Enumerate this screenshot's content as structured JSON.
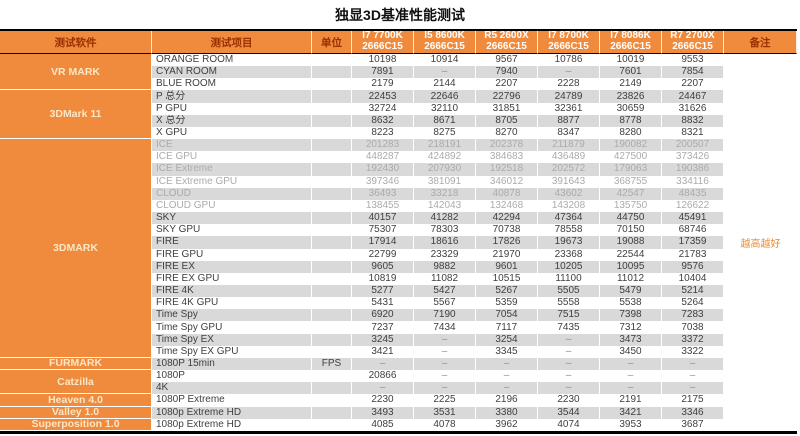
{
  "title": "独显3D基准性能测试",
  "colors": {
    "accent_orange": "#F08B3E",
    "stripe_gray": "#D9D9D9",
    "header_text": "#9C3000",
    "group_label_text": "#FBE7C5",
    "value_text": "#3F3F3F",
    "muted_row_text": "#ABABAB",
    "note_text": "#E78B33"
  },
  "table": {
    "headers": {
      "software": "测试软件",
      "item": "测试项目",
      "unit": "单位",
      "remark": "备注"
    },
    "cpu_columns": [
      {
        "model": "I7 7700K",
        "mem": "2666C15"
      },
      {
        "model": "I5 8600K",
        "mem": "2666C15"
      },
      {
        "model": "R5 2600X",
        "mem": "2666C15"
      },
      {
        "model": "I7 8700K",
        "mem": "2666C15"
      },
      {
        "model": "I7 8086K",
        "mem": "2666C15"
      },
      {
        "model": "R7 2700X",
        "mem": "2666C15"
      }
    ],
    "groups": [
      {
        "software": "VR MARK",
        "rows": [
          {
            "item": "ORANGE ROOM",
            "unit": "",
            "values": [
              "10198",
              "10914",
              "9567",
              "10786",
              "10019",
              "9553"
            ]
          },
          {
            "item": "CYAN ROOM",
            "unit": "",
            "values": [
              "7891",
              "–",
              "7940",
              "–",
              "7601",
              "7854"
            ]
          },
          {
            "item": "BLUE ROOM",
            "unit": "",
            "values": [
              "2179",
              "2144",
              "2207",
              "2228",
              "2149",
              "2207"
            ]
          }
        ]
      },
      {
        "software": "3DMark 11",
        "rows": [
          {
            "item": "P 总分",
            "unit": "",
            "values": [
              "22453",
              "22646",
              "22796",
              "24789",
              "23826",
              "24467"
            ]
          },
          {
            "item": "P GPU",
            "unit": "",
            "values": [
              "32724",
              "32110",
              "31851",
              "32361",
              "30659",
              "31626"
            ]
          },
          {
            "item": "X 总分",
            "unit": "",
            "values": [
              "8632",
              "8671",
              "8705",
              "8877",
              "8778",
              "8832"
            ]
          },
          {
            "item": "X GPU",
            "unit": "",
            "values": [
              "8223",
              "8275",
              "8270",
              "8347",
              "8280",
              "8321"
            ]
          }
        ]
      },
      {
        "software": "3DMARK",
        "rows": [
          {
            "item": "ICE",
            "unit": "",
            "muted": true,
            "values": [
              "201283",
              "218191",
              "202378",
              "211879",
              "190082",
              "200507"
            ]
          },
          {
            "item": "ICE GPU",
            "unit": "",
            "muted": true,
            "values": [
              "448287",
              "424892",
              "384683",
              "436489",
              "427500",
              "373426"
            ]
          },
          {
            "item": "ICE Extreme",
            "unit": "",
            "muted": true,
            "values": [
              "192430",
              "207930",
              "192518",
              "202572",
              "179063",
              "190386"
            ]
          },
          {
            "item": "ICE Extreme GPU",
            "unit": "",
            "muted": true,
            "values": [
              "397346",
              "381091",
              "346012",
              "391643",
              "368755",
              "334116"
            ]
          },
          {
            "item": "CLOUD",
            "unit": "",
            "muted": true,
            "values": [
              "36493",
              "33218",
              "40878",
              "43602",
              "42547",
              "48435"
            ]
          },
          {
            "item": "CLOUD GPU",
            "unit": "",
            "muted": true,
            "values": [
              "138455",
              "142043",
              "132468",
              "143208",
              "135750",
              "126622"
            ]
          },
          {
            "item": "SKY",
            "unit": "",
            "values": [
              "40157",
              "41282",
              "42294",
              "47364",
              "44750",
              "45491"
            ]
          },
          {
            "item": "SKY GPU",
            "unit": "",
            "values": [
              "75307",
              "78303",
              "70738",
              "78558",
              "70150",
              "68746"
            ]
          },
          {
            "item": "FIRE",
            "unit": "",
            "remark": "越高越好",
            "values": [
              "17914",
              "18616",
              "17826",
              "19673",
              "19088",
              "17359"
            ]
          },
          {
            "item": "FIRE GPU",
            "unit": "",
            "values": [
              "22799",
              "23329",
              "21970",
              "23368",
              "22544",
              "21783"
            ]
          },
          {
            "item": "FIRE EX",
            "unit": "",
            "values": [
              "9605",
              "9882",
              "9601",
              "10205",
              "10095",
              "9576"
            ]
          },
          {
            "item": "FIRE EX GPU",
            "unit": "",
            "values": [
              "10819",
              "11082",
              "10515",
              "11100",
              "11012",
              "10404"
            ]
          },
          {
            "item": "FIRE 4K",
            "unit": "",
            "values": [
              "5277",
              "5427",
              "5267",
              "5505",
              "5479",
              "5214"
            ]
          },
          {
            "item": "FIRE 4K GPU",
            "unit": "",
            "values": [
              "5431",
              "5567",
              "5359",
              "5558",
              "5538",
              "5264"
            ]
          },
          {
            "item": "Time Spy",
            "unit": "",
            "values": [
              "6920",
              "7190",
              "7054",
              "7515",
              "7398",
              "7283"
            ]
          },
          {
            "item": "Time Spy GPU",
            "unit": "",
            "values": [
              "7237",
              "7434",
              "7117",
              "7435",
              "7312",
              "7038"
            ]
          },
          {
            "item": "Time Spy EX",
            "unit": "",
            "values": [
              "3245",
              "–",
              "3254",
              "–",
              "3473",
              "3372"
            ]
          },
          {
            "item": "Time Spy EX GPU",
            "unit": "",
            "values": [
              "3421",
              "–",
              "3345",
              "–",
              "3450",
              "3322"
            ]
          }
        ]
      },
      {
        "software": "FURMARK",
        "rows": [
          {
            "item": "1080P 15min",
            "unit": "FPS",
            "values": [
              "–",
              "–",
              "–",
              "–",
              "–",
              "–"
            ]
          }
        ]
      },
      {
        "software": "Catzilla",
        "rows": [
          {
            "item": "1080P",
            "unit": "",
            "values": [
              "20866",
              "–",
              "–",
              "–",
              "–",
              "–"
            ]
          },
          {
            "item": "4K",
            "unit": "",
            "values": [
              "–",
              "–",
              "–",
              "–",
              "–",
              "–"
            ]
          }
        ]
      },
      {
        "software": "Heaven 4.0",
        "rows": [
          {
            "item": "1080P Extreme",
            "unit": "",
            "values": [
              "2230",
              "2225",
              "2196",
              "2230",
              "2191",
              "2175"
            ]
          }
        ]
      },
      {
        "software": "Valley 1.0",
        "rows": [
          {
            "item": "1080p Extreme HD",
            "unit": "",
            "values": [
              "3493",
              "3531",
              "3380",
              "3544",
              "3421",
              "3346"
            ]
          }
        ]
      },
      {
        "software": "Superposition 1.0",
        "rows": [
          {
            "item": "1080p Extreme HD",
            "unit": "",
            "values": [
              "4085",
              "4078",
              "3962",
              "4074",
              "3953",
              "3687"
            ]
          }
        ]
      }
    ]
  }
}
